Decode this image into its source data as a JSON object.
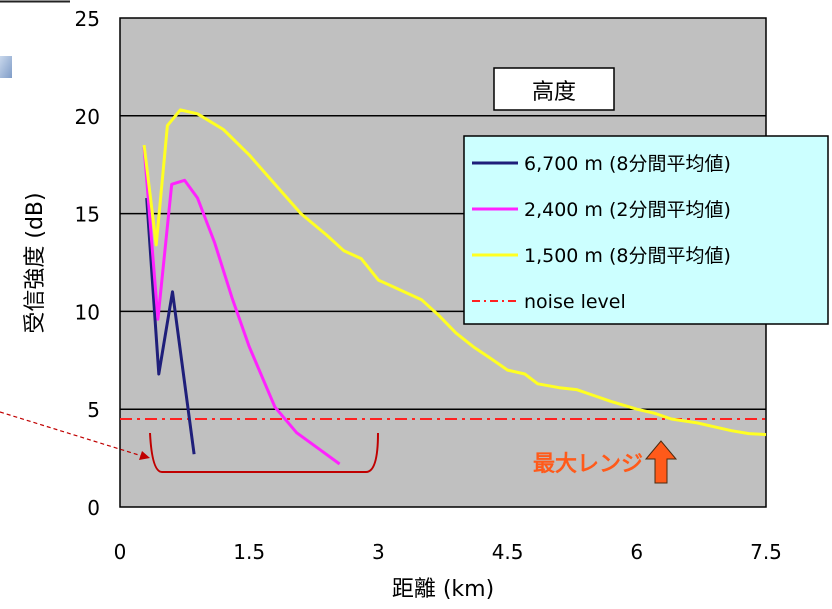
{
  "chart_data": {
    "type": "line",
    "xlabel": "距離 (km)",
    "ylabel": "受信強度 (dB)",
    "xlim": [
      0,
      7.5
    ],
    "ylim": [
      0,
      25
    ],
    "x_ticks": [
      "0",
      "1.5",
      "3",
      "4.5",
      "6",
      "7.5"
    ],
    "y_ticks": [
      "0",
      "5",
      "10",
      "15",
      "20",
      "25"
    ],
    "grid": "horizontal",
    "legend_title": "高度",
    "legend_position": "top-right",
    "series": [
      {
        "name": "6,700 m (8分間平均値)",
        "color": "#1f1f7a",
        "points": [
          [
            0.31,
            15.8
          ],
          [
            0.45,
            6.8
          ],
          [
            0.61,
            11.0
          ],
          [
            0.86,
            2.7
          ]
        ]
      },
      {
        "name": "2,400 m (2分間平均値)",
        "color": "#ff22ff",
        "points": [
          [
            0.28,
            18.4
          ],
          [
            0.44,
            9.6
          ],
          [
            0.6,
            16.5
          ],
          [
            0.75,
            16.7
          ],
          [
            0.9,
            15.8
          ],
          [
            1.1,
            13.5
          ],
          [
            1.3,
            10.7
          ],
          [
            1.5,
            8.2
          ],
          [
            1.8,
            5.1
          ],
          [
            2.05,
            3.8
          ],
          [
            2.3,
            3.0
          ],
          [
            2.55,
            2.2
          ]
        ]
      },
      {
        "name": "1,500 m (8分間平均値)",
        "color": "#ffff22",
        "points": [
          [
            0.28,
            18.5
          ],
          [
            0.42,
            13.4
          ],
          [
            0.55,
            19.5
          ],
          [
            0.7,
            20.3
          ],
          [
            0.9,
            20.1
          ],
          [
            1.2,
            19.3
          ],
          [
            1.5,
            18.0
          ],
          [
            1.8,
            16.5
          ],
          [
            2.1,
            15.0
          ],
          [
            2.4,
            13.9
          ],
          [
            2.6,
            13.1
          ],
          [
            2.8,
            12.7
          ],
          [
            3.0,
            11.6
          ],
          [
            3.2,
            11.2
          ],
          [
            3.5,
            10.6
          ],
          [
            3.7,
            9.8
          ],
          [
            3.9,
            8.9
          ],
          [
            4.1,
            8.2
          ],
          [
            4.3,
            7.6
          ],
          [
            4.5,
            7.0
          ],
          [
            4.7,
            6.8
          ],
          [
            4.85,
            6.3
          ],
          [
            5.1,
            6.1
          ],
          [
            5.3,
            6.0
          ],
          [
            5.5,
            5.7
          ],
          [
            5.7,
            5.4
          ],
          [
            5.85,
            5.2
          ],
          [
            6.0,
            5.0
          ],
          [
            6.2,
            4.8
          ],
          [
            6.4,
            4.5
          ],
          [
            6.7,
            4.3
          ],
          [
            6.9,
            4.1
          ],
          [
            7.1,
            3.9
          ],
          [
            7.3,
            3.75
          ],
          [
            7.5,
            3.7
          ]
        ]
      }
    ],
    "noise_level": {
      "name": "noise level",
      "value": 4.5,
      "color": "#ff2020"
    },
    "annotation": {
      "text": "最大レンジ",
      "color": "#ff5a1a",
      "x": 6.45
    }
  }
}
